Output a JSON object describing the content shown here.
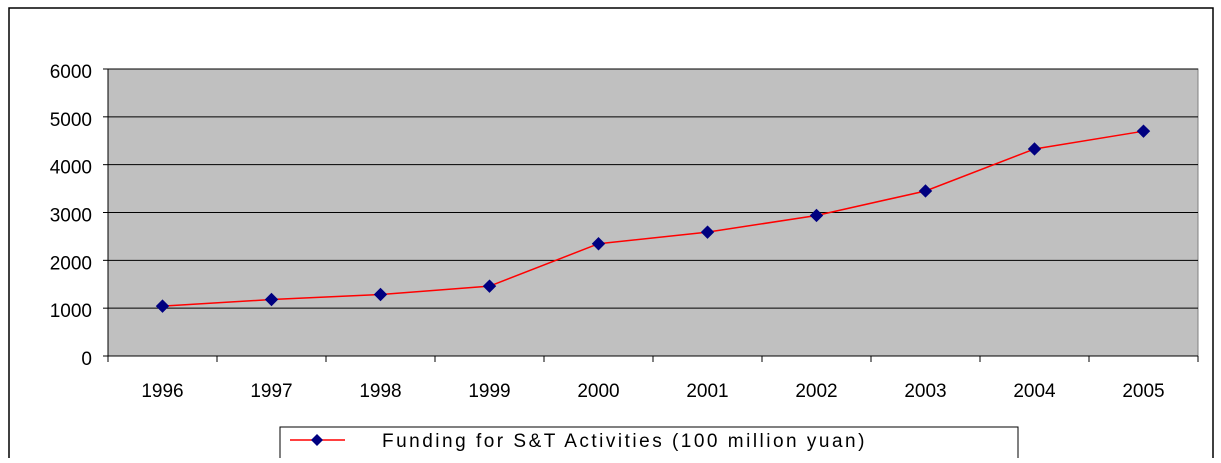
{
  "chart_data": {
    "type": "line",
    "categories": [
      "1996",
      "1997",
      "1998",
      "1999",
      "2000",
      "2001",
      "2002",
      "2003",
      "2004",
      "2005"
    ],
    "series": [
      {
        "name": "Funding for S&T Activities (100 million yuan)",
        "color": "#ff0000",
        "marker_color": "#000080",
        "values": [
          1043,
          1181,
          1286,
          1460,
          2347,
          2589,
          2938,
          3450,
          4328,
          4700
        ]
      }
    ],
    "ylim": [
      0,
      6000
    ],
    "yticks": [
      0,
      1000,
      2000,
      3000,
      4000,
      5000,
      6000
    ],
    "grid": true,
    "legend": "bottom"
  }
}
